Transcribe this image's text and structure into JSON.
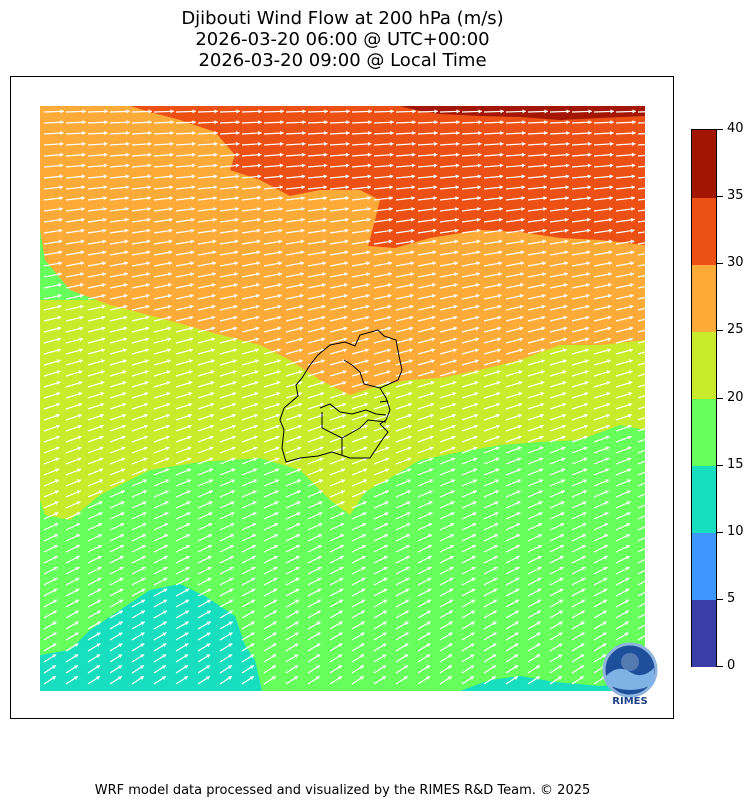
{
  "title": {
    "line1": "Djibouti Wind Flow at 200 hPa (m/s)",
    "line2": "2026-03-20 06:00 @ UTC+00:00",
    "line3": "2026-03-20 09:00 @ Local Time"
  },
  "colorbar": {
    "levels": [
      0,
      5,
      10,
      15,
      20,
      25,
      30,
      35,
      40
    ],
    "tick_labels": [
      "0",
      "5",
      "10",
      "15",
      "20",
      "25",
      "30",
      "35",
      "40"
    ],
    "colors": [
      "#3b3ea8",
      "#4096ff",
      "#18dec0",
      "#66ff5c",
      "#caea2c",
      "#fdab38",
      "#ec5014",
      "#a41604"
    ]
  },
  "zone_colors": {
    "band_10_15": "#18dec0",
    "band_15_20": "#66ff5c",
    "band_20_25": "#caea2c",
    "band_25_30": "#fdab38",
    "band_30_35": "#ec5014",
    "band_35_40": "#a41604",
    "vector_color": "#ffffff",
    "border_color": "#000000"
  },
  "wind_field": {
    "dominant_direction": "westerly to south-westerly (flow toward east / north-east)",
    "max_speed_band": "35-40",
    "min_speed_band": "10-15"
  },
  "logo": {
    "text": "RIMES",
    "icon": "rimes-globe-icon"
  },
  "footer": "WRF model data processed and visualized by the RIMES R&D Team. © 2025"
}
